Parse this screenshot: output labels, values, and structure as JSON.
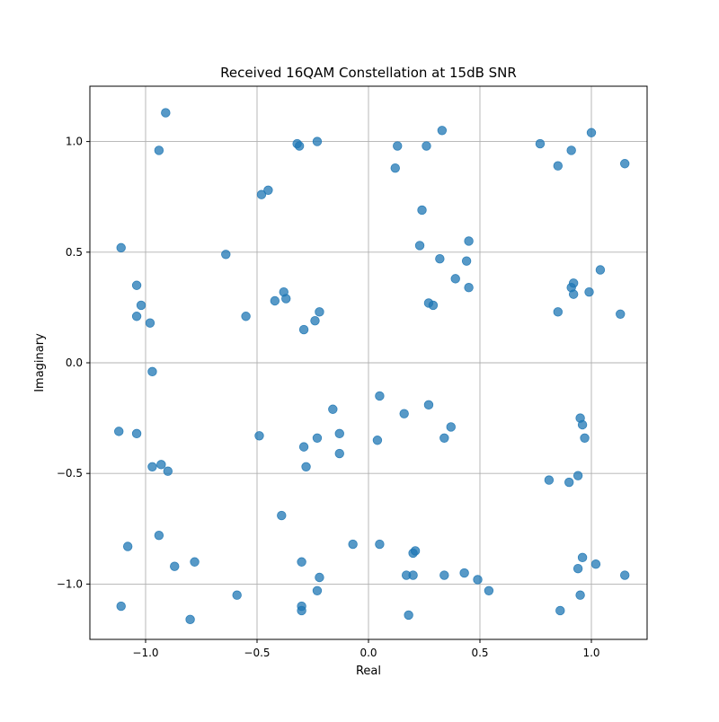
{
  "chart_data": {
    "type": "scatter",
    "title": "Received 16QAM Constellation at 15dB SNR",
    "xlabel": "Real",
    "ylabel": "Imaginary",
    "xlim": [
      -1.25,
      1.25
    ],
    "ylim": [
      -1.25,
      1.25
    ],
    "grid": true,
    "xticks": [
      -1.0,
      -0.5,
      0.0,
      0.5,
      1.0
    ],
    "xtick_labels": [
      "−1.0",
      "−0.5",
      "0.0",
      "0.5",
      "1.0"
    ],
    "yticks": [
      -1.0,
      -0.5,
      0.0,
      0.5,
      1.0
    ],
    "ytick_labels": [
      "−1.0",
      "−0.5",
      "0.0",
      "0.5",
      "1.0"
    ],
    "marker_color": "#1f77b4",
    "marker_alpha": 0.75,
    "points": [
      [
        -0.91,
        1.13
      ],
      [
        -0.94,
        0.96
      ],
      [
        -0.32,
        0.99
      ],
      [
        -0.31,
        0.98
      ],
      [
        -0.23,
        1.0
      ],
      [
        0.13,
        0.98
      ],
      [
        0.12,
        0.88
      ],
      [
        0.26,
        0.98
      ],
      [
        0.33,
        1.05
      ],
      [
        0.77,
        0.99
      ],
      [
        0.85,
        0.89
      ],
      [
        0.91,
        0.96
      ],
      [
        1.0,
        1.04
      ],
      [
        1.15,
        0.9
      ],
      [
        -0.48,
        0.76
      ],
      [
        -0.45,
        0.78
      ],
      [
        0.24,
        0.69
      ],
      [
        -1.11,
        0.52
      ],
      [
        -0.64,
        0.49
      ],
      [
        0.23,
        0.53
      ],
      [
        0.45,
        0.55
      ],
      [
        0.32,
        0.47
      ],
      [
        0.44,
        0.46
      ],
      [
        -1.04,
        0.35
      ],
      [
        -1.02,
        0.26
      ],
      [
        -1.04,
        0.21
      ],
      [
        -0.98,
        0.18
      ],
      [
        -0.55,
        0.21
      ],
      [
        -0.42,
        0.28
      ],
      [
        -0.38,
        0.32
      ],
      [
        -0.37,
        0.29
      ],
      [
        -0.24,
        0.19
      ],
      [
        -0.22,
        0.23
      ],
      [
        -0.29,
        0.15
      ],
      [
        0.39,
        0.38
      ],
      [
        0.45,
        0.34
      ],
      [
        0.27,
        0.27
      ],
      [
        0.29,
        0.26
      ],
      [
        0.85,
        0.23
      ],
      [
        0.91,
        0.34
      ],
      [
        0.92,
        0.36
      ],
      [
        0.92,
        0.31
      ],
      [
        0.99,
        0.32
      ],
      [
        1.04,
        0.42
      ],
      [
        1.13,
        0.22
      ],
      [
        -0.97,
        -0.04
      ],
      [
        0.05,
        -0.15
      ],
      [
        0.27,
        -0.19
      ],
      [
        -0.16,
        -0.21
      ],
      [
        0.16,
        -0.23
      ],
      [
        0.95,
        -0.25
      ],
      [
        0.96,
        -0.28
      ],
      [
        0.37,
        -0.29
      ],
      [
        -1.12,
        -0.31
      ],
      [
        -1.04,
        -0.32
      ],
      [
        -0.13,
        -0.32
      ],
      [
        -0.49,
        -0.33
      ],
      [
        -0.23,
        -0.34
      ],
      [
        0.04,
        -0.35
      ],
      [
        0.34,
        -0.34
      ],
      [
        0.97,
        -0.34
      ],
      [
        -0.29,
        -0.38
      ],
      [
        -0.13,
        -0.41
      ],
      [
        -0.97,
        -0.47
      ],
      [
        -0.93,
        -0.46
      ],
      [
        -0.28,
        -0.47
      ],
      [
        -0.9,
        -0.49
      ],
      [
        0.94,
        -0.51
      ],
      [
        0.81,
        -0.53
      ],
      [
        0.9,
        -0.54
      ],
      [
        -0.39,
        -0.69
      ],
      [
        -0.94,
        -0.78
      ],
      [
        -1.08,
        -0.83
      ],
      [
        -0.07,
        -0.82
      ],
      [
        0.05,
        -0.82
      ],
      [
        0.2,
        -0.86
      ],
      [
        0.21,
        -0.85
      ],
      [
        -0.87,
        -0.92
      ],
      [
        -0.78,
        -0.9
      ],
      [
        -0.3,
        -0.9
      ],
      [
        0.96,
        -0.88
      ],
      [
        0.94,
        -0.93
      ],
      [
        1.02,
        -0.91
      ],
      [
        -0.22,
        -0.97
      ],
      [
        0.17,
        -0.96
      ],
      [
        0.2,
        -0.96
      ],
      [
        0.34,
        -0.96
      ],
      [
        0.43,
        -0.95
      ],
      [
        0.49,
        -0.98
      ],
      [
        1.15,
        -0.96
      ],
      [
        -1.11,
        -1.1
      ],
      [
        -0.59,
        -1.05
      ],
      [
        -0.23,
        -1.03
      ],
      [
        -0.3,
        -1.1
      ],
      [
        -0.3,
        -1.12
      ],
      [
        0.54,
        -1.03
      ],
      [
        0.95,
        -1.05
      ],
      [
        0.86,
        -1.12
      ],
      [
        -0.8,
        -1.16
      ],
      [
        0.18,
        -1.14
      ]
    ]
  }
}
